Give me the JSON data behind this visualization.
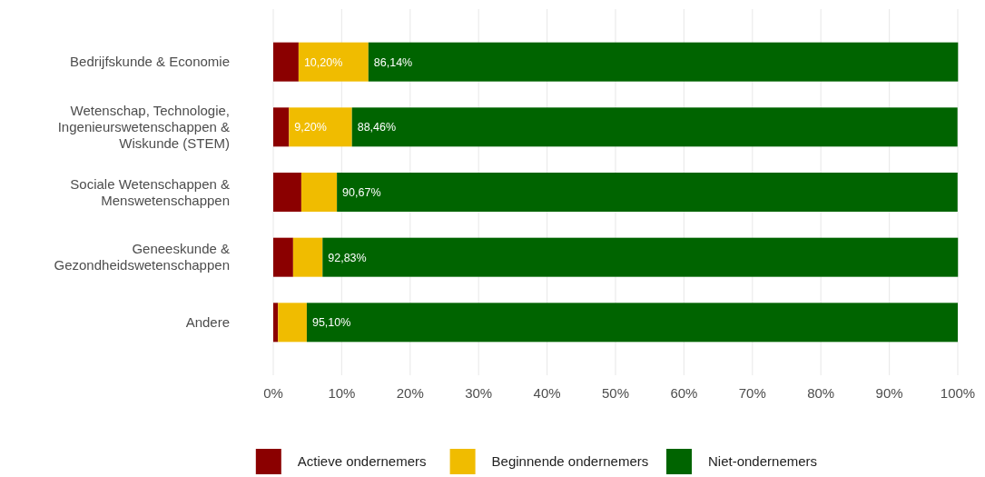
{
  "chart_data": {
    "type": "bar",
    "orientation": "horizontal",
    "stacked": true,
    "categories": [
      "Bedrijfskunde & Economie",
      "Wetenschap, Technologie, Ingenieurswetenschappen & Wiskunde (STEM)",
      "Sociale Wetenschappen & Menswetenschappen",
      "Geneeskunde & Gezondheidswetenschappen",
      "Andere"
    ],
    "series": [
      {
        "name": "Actieve ondernemers",
        "color": "#8b0000",
        "values": [
          3.7,
          2.3,
          4.1,
          2.9,
          0.7
        ]
      },
      {
        "name": "Beginnende ondernemers",
        "color": "#f0bc00",
        "values": [
          10.2,
          9.2,
          5.2,
          4.3,
          4.2
        ],
        "value_labels": [
          "10,20%",
          "9,20%",
          null,
          null,
          null
        ]
      },
      {
        "name": "Niet-ondernemers",
        "color": "#006400",
        "values": [
          86.14,
          88.46,
          90.67,
          92.83,
          95.1
        ],
        "value_labels": [
          "86,14%",
          "88,46%",
          "90,67%",
          "92,83%",
          "95,10%"
        ]
      }
    ],
    "xlim": [
      0,
      100
    ],
    "xticks": [
      {
        "value": 0,
        "label": "0%"
      },
      {
        "value": 10,
        "label": "10%"
      },
      {
        "value": 20,
        "label": "20%"
      },
      {
        "value": 30,
        "label": "30%"
      },
      {
        "value": 40,
        "label": "40%"
      },
      {
        "value": 50,
        "label": "50%"
      },
      {
        "value": 60,
        "label": "60%"
      },
      {
        "value": 70,
        "label": "70%"
      },
      {
        "value": 80,
        "label": "80%"
      },
      {
        "value": 90,
        "label": "90%"
      },
      {
        "value": 100,
        "label": "100%"
      }
    ],
    "grid": "x",
    "legend": "bottom"
  }
}
